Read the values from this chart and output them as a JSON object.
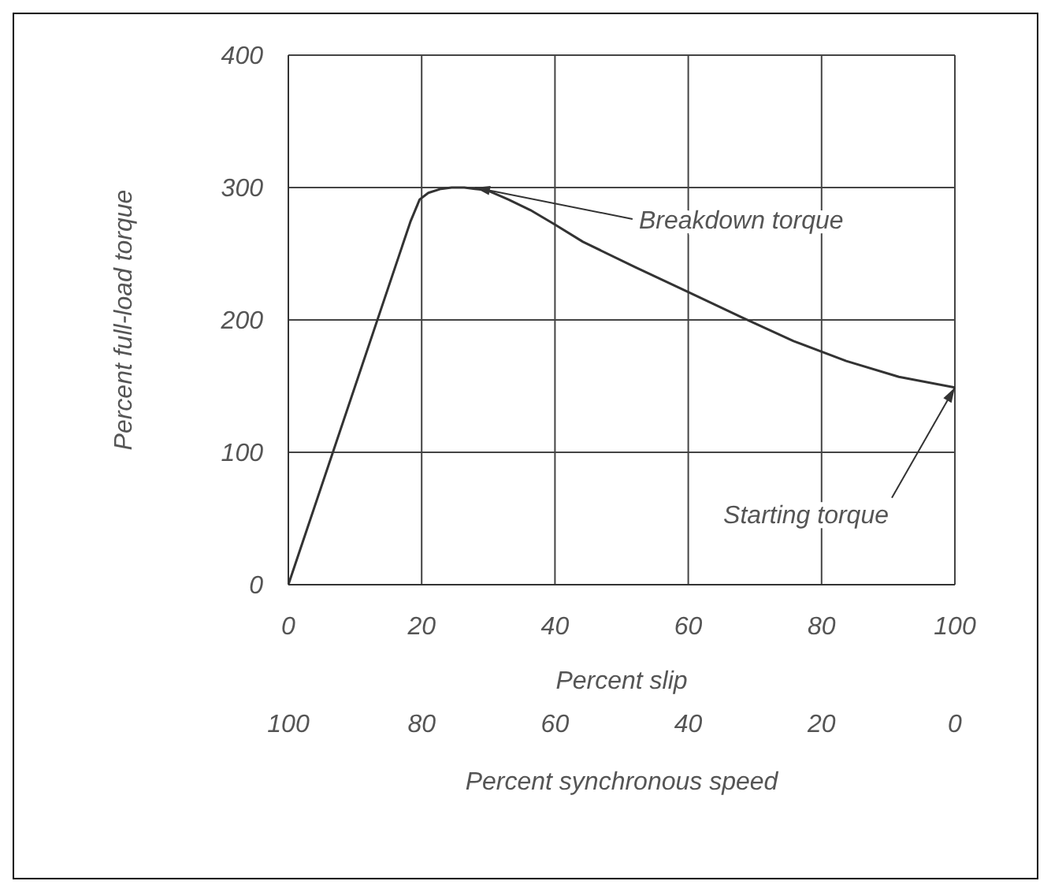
{
  "chart_data": {
    "type": "line",
    "xlabel": "Percent slip",
    "ylabel": "Percent full-load torque",
    "x2label": "Percent synchronous speed",
    "x": [
      0,
      18.3,
      19.7,
      21,
      22.9,
      24.5,
      26.4,
      28,
      29.8,
      33,
      36.3,
      40,
      44.2,
      52,
      60,
      68,
      75.8,
      83.7,
      91.6,
      100
    ],
    "series": [
      {
        "color": "#333333",
        "values": [
          0,
          274,
          291,
          296,
          299,
          300,
          300,
          299,
          298,
          291,
          283,
          272,
          259,
          240,
          221,
          202,
          184,
          169,
          157,
          149
        ]
      }
    ],
    "xlim": [
      0,
      100
    ],
    "xticks": [
      0,
      20,
      40,
      60,
      80,
      100
    ],
    "ylim": [
      0,
      400
    ],
    "yticks": [
      0,
      100,
      200,
      300,
      400
    ],
    "x2lim": [
      100,
      0
    ],
    "x2ticks": [
      100,
      80,
      60,
      40,
      20,
      0
    ],
    "grid": true,
    "marker": "none",
    "line_style": "solid",
    "annotations": [
      {
        "text": "Breakdown torque",
        "x": 28,
        "y": 300
      },
      {
        "text": "Starting torque",
        "x": 100,
        "y": 149
      }
    ]
  }
}
